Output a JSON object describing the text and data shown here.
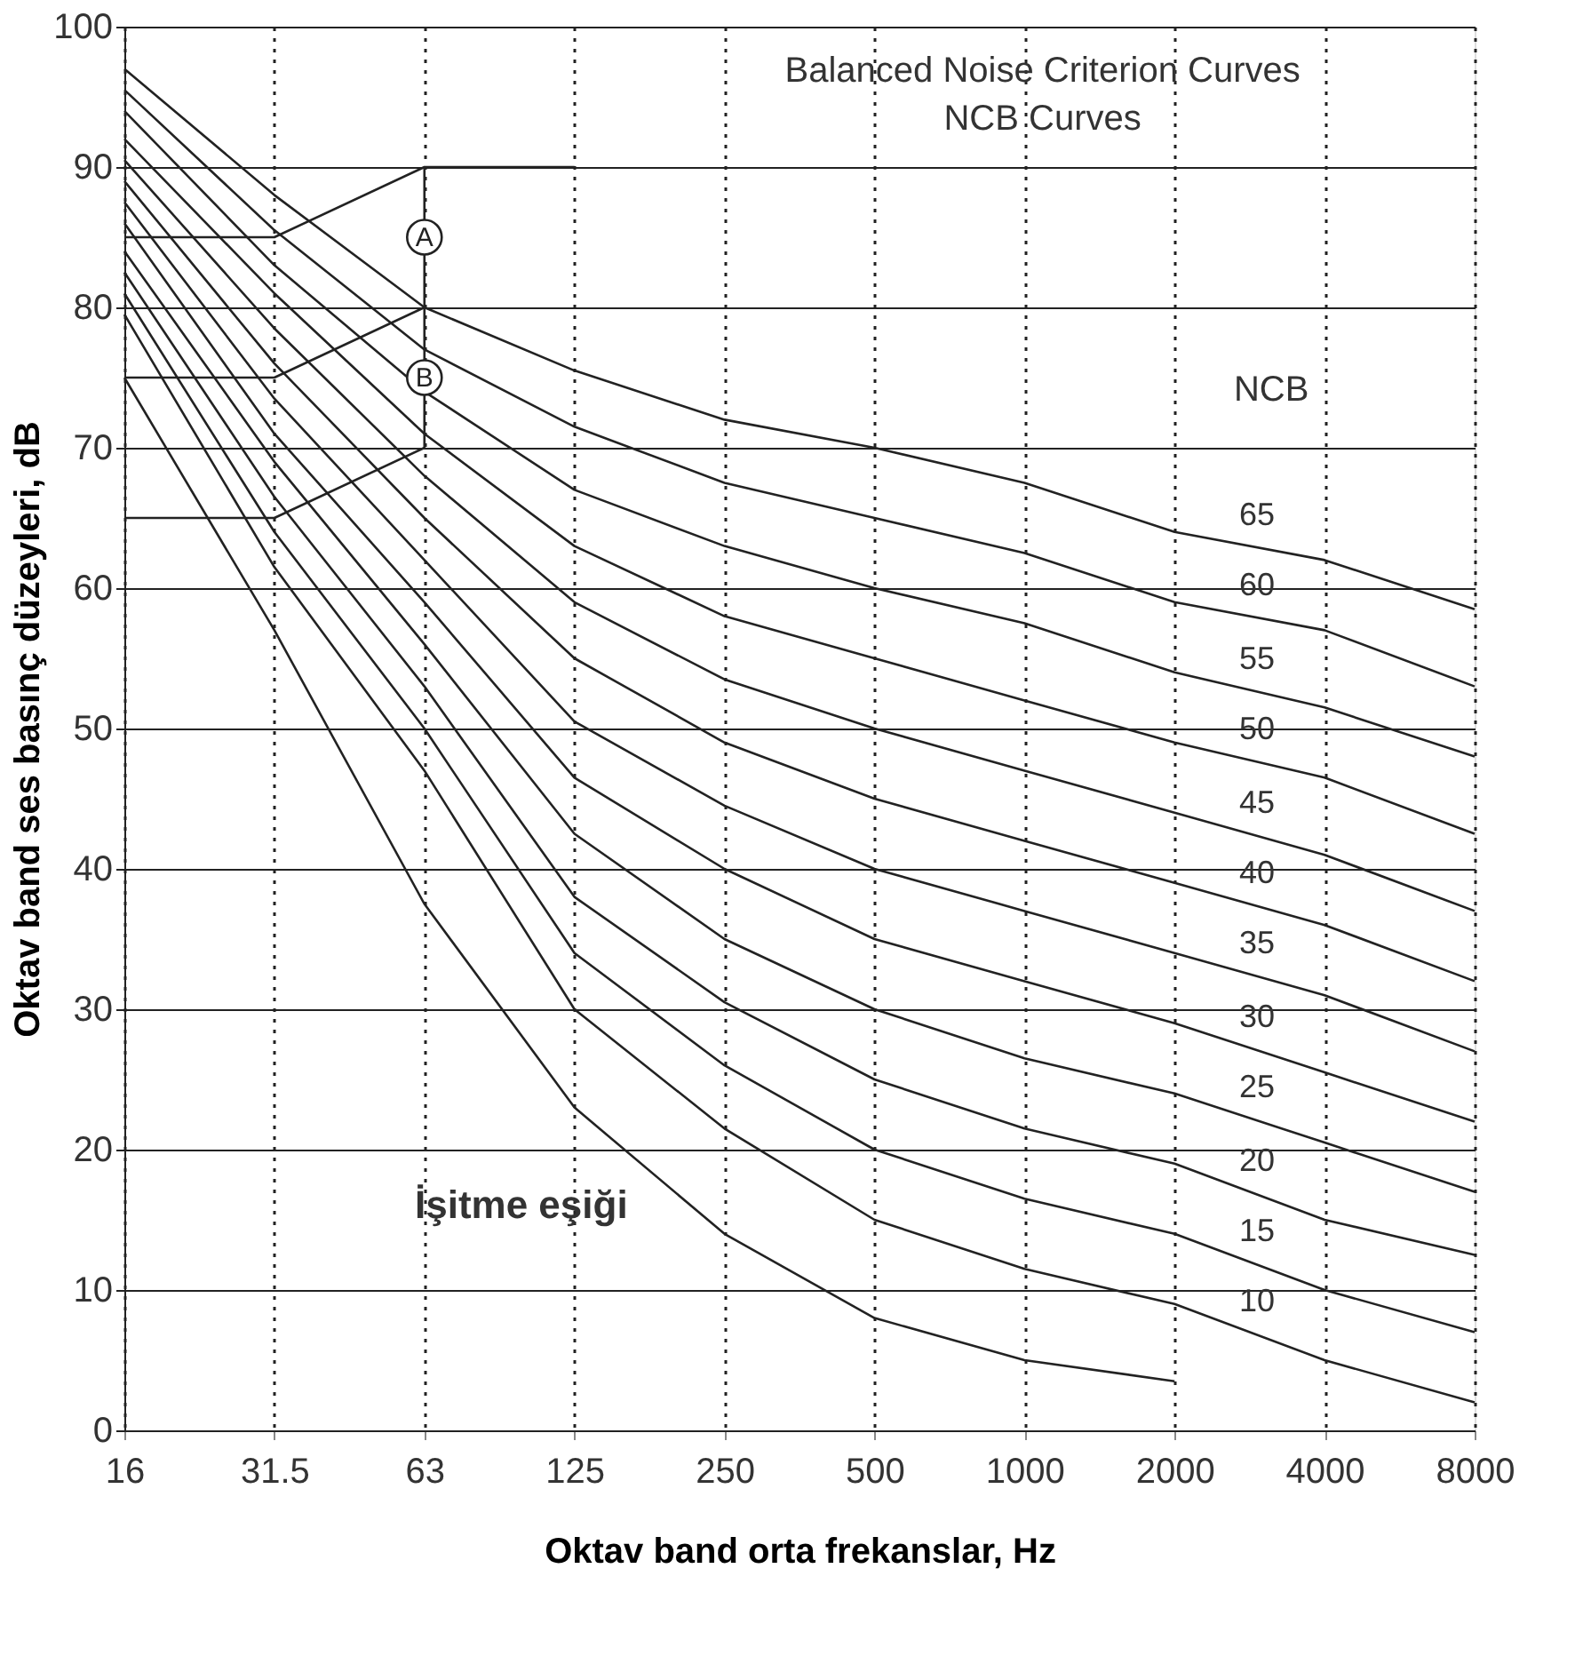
{
  "chart_data": {
    "type": "line",
    "title": "Balanced Noise Criterion Curves",
    "subtitle": "NCB Curves",
    "legend_title": "NCB",
    "xlabel": "Oktav band orta frekanslar, Hz",
    "ylabel": "Oktav band ses basınç düzeyleri, dB",
    "categories": [
      "16",
      "31.5",
      "63",
      "125",
      "250",
      "500",
      "1000",
      "2000",
      "4000",
      "8000"
    ],
    "ylim": [
      0,
      100
    ],
    "yticks": [
      0,
      10,
      20,
      30,
      40,
      50,
      60,
      70,
      80,
      90,
      100
    ],
    "grid": true,
    "legend": false,
    "marker": "none",
    "line_style": "solid",
    "annotations": [
      {
        "text": "A",
        "x": "63",
        "y": 85
      },
      {
        "text": "B",
        "x": "63",
        "y": 75
      }
    ],
    "series": [
      {
        "name": "65",
        "color": "#222222",
        "values": [
          97,
          88,
          80,
          75.5,
          72,
          70,
          67.5,
          64,
          62,
          58.5
        ]
      },
      {
        "name": "60",
        "color": "#222222",
        "values": [
          95.5,
          85.5,
          77,
          71.5,
          67.5,
          65,
          62.5,
          59,
          57,
          53
        ]
      },
      {
        "name": "55",
        "color": "#222222",
        "values": [
          94,
          83,
          74,
          67,
          63,
          60,
          57.5,
          54,
          51.5,
          48
        ]
      },
      {
        "name": "50",
        "color": "#222222",
        "values": [
          92,
          81,
          71,
          63,
          58,
          55,
          52,
          49,
          46.5,
          42.5
        ]
      },
      {
        "name": "45",
        "color": "#222222",
        "values": [
          90.5,
          78.5,
          68,
          59,
          53.5,
          50,
          47,
          44,
          41,
          37
        ]
      },
      {
        "name": "40",
        "color": "#222222",
        "values": [
          89,
          76,
          65,
          55,
          49,
          45,
          42,
          39,
          36,
          32
        ]
      },
      {
        "name": "35",
        "color": "#222222",
        "values": [
          87.5,
          73.5,
          62,
          50.5,
          44.5,
          40,
          37,
          34,
          31,
          27
        ]
      },
      {
        "name": "30",
        "color": "#222222",
        "values": [
          86,
          71,
          59,
          46.5,
          40,
          35,
          32,
          29,
          25.5,
          22
        ]
      },
      {
        "name": "25",
        "color": "#222222",
        "values": [
          84,
          69,
          56,
          42.5,
          35,
          30,
          26.5,
          24,
          20.5,
          17
        ]
      },
      {
        "name": "20",
        "color": "#222222",
        "values": [
          82.5,
          66.5,
          53,
          38,
          30.5,
          25,
          21.5,
          19,
          15,
          12.5
        ]
      },
      {
        "name": "15",
        "color": "#222222",
        "values": [
          81,
          64,
          50,
          34,
          26,
          20,
          16.5,
          14,
          10,
          7
        ]
      },
      {
        "name": "10",
        "color": "#222222",
        "values": [
          79.5,
          61.5,
          47,
          30,
          21.5,
          15,
          11.5,
          9,
          5,
          2
        ]
      },
      {
        "name": "İşitme eşiği",
        "color": "#222222",
        "values": [
          75,
          57,
          37.5,
          23,
          14,
          8,
          5,
          3.5,
          null,
          null
        ]
      },
      {
        "color": "#222222",
        "values": [
          85,
          85,
          90,
          90,
          null,
          null,
          null,
          null,
          null,
          null
        ]
      },
      {
        "color": "#222222",
        "values": [
          75,
          75,
          80,
          null,
          null,
          null,
          null,
          null,
          null,
          null
        ]
      },
      {
        "color": "#222222",
        "values": [
          65,
          65,
          70,
          null,
          null,
          null,
          null,
          null,
          null,
          null
        ]
      },
      {
        "color": "#222222",
        "x": [
          "63",
          "63"
        ],
        "values": [
          90,
          70
        ]
      }
    ]
  }
}
